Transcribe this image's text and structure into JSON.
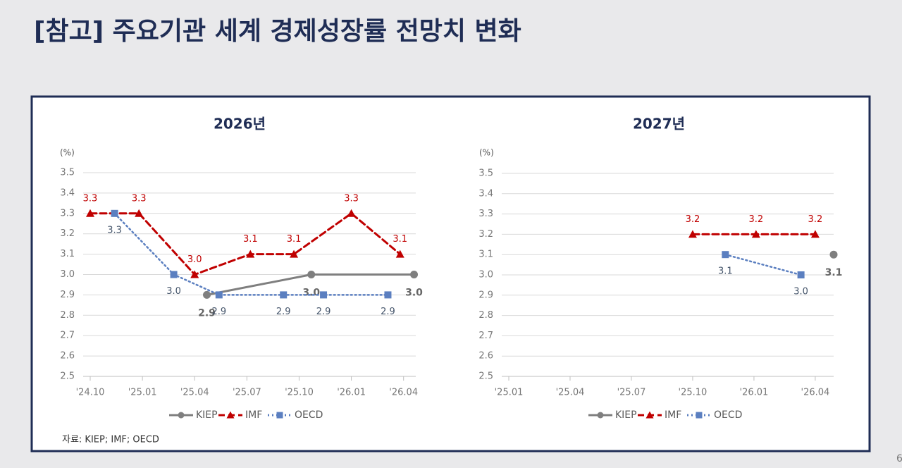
{
  "title": "[참고] 주요기관 세계 경제성장률 전망치 변화",
  "chart_data": [
    {
      "type": "line",
      "title": "2026년",
      "y_unit": "(%)",
      "xlim": [
        0,
        18.7
      ],
      "xticks": [
        {
          "value": 0,
          "label": "'24.10"
        },
        {
          "value": 3,
          "label": "'25.01"
        },
        {
          "value": 6,
          "label": "'25.04"
        },
        {
          "value": 9,
          "label": "'25.07"
        },
        {
          "value": 12,
          "label": "'25.10"
        },
        {
          "value": 15,
          "label": "'26.01"
        },
        {
          "value": 18,
          "label": "'26.04"
        }
      ],
      "ylim": [
        2.5,
        3.5
      ],
      "yticks": [
        2.5,
        2.6,
        2.7,
        2.8,
        2.9,
        {
          "value": 3,
          "label": "3.0"
        },
        3.1,
        3.2,
        3.3,
        3.4,
        3.5
      ],
      "grid": true,
      "legend": "bottom",
      "series": [
        {
          "name": "KIEP",
          "color": "#7f7f7f",
          "style": "solid",
          "marker": "circle",
          "x": [
            6.7,
            12.7,
            18.6
          ],
          "values": [
            2.9,
            3,
            3
          ],
          "value_labels": [
            "2.9",
            "3.0",
            "3.0"
          ]
        },
        {
          "name": "IMF",
          "color": "#c00000",
          "style": "dashed",
          "marker": "triangle",
          "x": [
            0,
            2.8,
            6,
            9.2,
            11.7,
            15,
            17.8
          ],
          "values": [
            3.3,
            3.3,
            3,
            3.1,
            3.1,
            3.3,
            3.1
          ],
          "value_labels": [
            "3.3",
            "3.3",
            "3.0",
            "3.1",
            "3.1",
            "3.3",
            "3.1"
          ]
        },
        {
          "name": "OECD",
          "color": "#5b7fc0",
          "style": "dotted",
          "marker": "square",
          "x": [
            1.4,
            4.8,
            7.4,
            11.1,
            13.4,
            17.1
          ],
          "values": [
            3.3,
            3,
            2.9,
            2.9,
            2.9,
            2.9
          ],
          "value_labels": [
            "3.3",
            "3.0",
            "2.9",
            "2.9",
            "2.9",
            "2.9"
          ]
        }
      ]
    },
    {
      "type": "line",
      "title": "2027년",
      "y_unit": "(%)",
      "xlim": [
        0,
        15.9
      ],
      "xticks": [
        {
          "value": 0,
          "label": "'25.01"
        },
        {
          "value": 3,
          "label": "'25.04"
        },
        {
          "value": 6,
          "label": "'25.07"
        },
        {
          "value": 9,
          "label": "'25.10"
        },
        {
          "value": 12,
          "label": "'26.01"
        },
        {
          "value": 15,
          "label": "'26.04"
        }
      ],
      "ylim": [
        2.5,
        3.5
      ],
      "yticks": [
        2.5,
        2.6,
        2.7,
        2.8,
        2.9,
        {
          "value": 3,
          "label": "3.0"
        },
        3.1,
        3.2,
        3.3,
        3.4,
        3.5
      ],
      "grid": true,
      "legend": "bottom",
      "series": [
        {
          "name": "KIEP",
          "color": "#7f7f7f",
          "style": "solid",
          "marker": "circle",
          "x": [
            15.9
          ],
          "values": [
            3.1
          ],
          "value_labels": [
            "3.1"
          ]
        },
        {
          "name": "IMF",
          "color": "#c00000",
          "style": "dashed",
          "marker": "triangle",
          "x": [
            9,
            12.1,
            15
          ],
          "values": [
            3.2,
            3.2,
            3.2
          ],
          "value_labels": [
            "3.2",
            "3.2",
            "3.2"
          ]
        },
        {
          "name": "OECD",
          "color": "#5b7fc0",
          "style": "dotted",
          "marker": "square",
          "x": [
            10.6,
            14.3
          ],
          "values": [
            3.1,
            3
          ],
          "value_labels": [
            "3.1",
            "3.0"
          ]
        }
      ]
    }
  ],
  "source": "자료: KIEP; IMF; OECD",
  "page_number": "6"
}
